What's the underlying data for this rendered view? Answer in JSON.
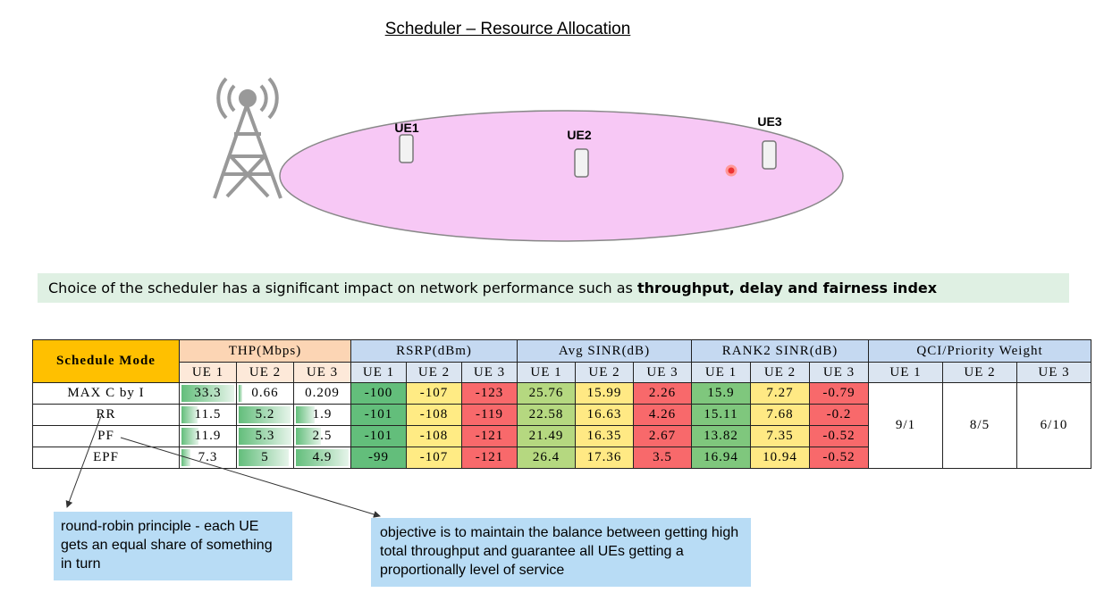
{
  "title": "Scheduler – Resource Allocation",
  "diagram": {
    "ue_labels": [
      "UE1",
      "UE2",
      "UE3"
    ]
  },
  "banner": {
    "text": "Choice of the scheduler has a significant impact on network performance such as ",
    "emphasis": "throughput, delay and fairness index"
  },
  "table": {
    "corner": "Schedule Mode",
    "groups": [
      {
        "name": "THP(Mbps)",
        "columns": [
          "UE 1",
          "UE 2",
          "UE 3"
        ]
      },
      {
        "name": "RSRP(dBm)",
        "columns": [
          "UE 1",
          "UE 2",
          "UE 3"
        ]
      },
      {
        "name": "Avg SINR(dB)",
        "columns": [
          "UE 1",
          "UE 2",
          "UE 3"
        ]
      },
      {
        "name": "RANK2 SINR(dB)",
        "columns": [
          "UE 1",
          "UE 2",
          "UE 3"
        ]
      },
      {
        "name": "QCI/Priority Weight",
        "columns": [
          "UE 1",
          "UE 2",
          "UE 3"
        ]
      }
    ],
    "rows": [
      {
        "mode": "MAX C by I",
        "values": [
          33.3,
          0.66,
          0.209,
          -100,
          -107,
          -123,
          25.76,
          15.99,
          2.26,
          15.9,
          7.27,
          -0.79
        ]
      },
      {
        "mode": "RR",
        "values": [
          11.5,
          5.2,
          1.9,
          -101,
          -108,
          -119,
          22.58,
          16.63,
          4.26,
          15.11,
          7.68,
          -0.2
        ]
      },
      {
        "mode": "PF",
        "values": [
          11.9,
          5.3,
          2.5,
          -101,
          -108,
          -121,
          21.49,
          16.35,
          2.67,
          13.82,
          7.35,
          -0.52
        ]
      },
      {
        "mode": "EPF",
        "values": [
          7.3,
          5,
          4.9,
          -99,
          -107,
          -121,
          26.4,
          17.36,
          3.5,
          16.94,
          10.94,
          -0.52
        ]
      }
    ],
    "qci": [
      "9/1",
      "8/5",
      "6/10"
    ]
  },
  "notes": [
    "round-robin principle - each UE gets an equal share of something in turn",
    "objective is to maintain the balance between getting high total throughput and guarantee all UEs getting a proportionally level of service"
  ]
}
